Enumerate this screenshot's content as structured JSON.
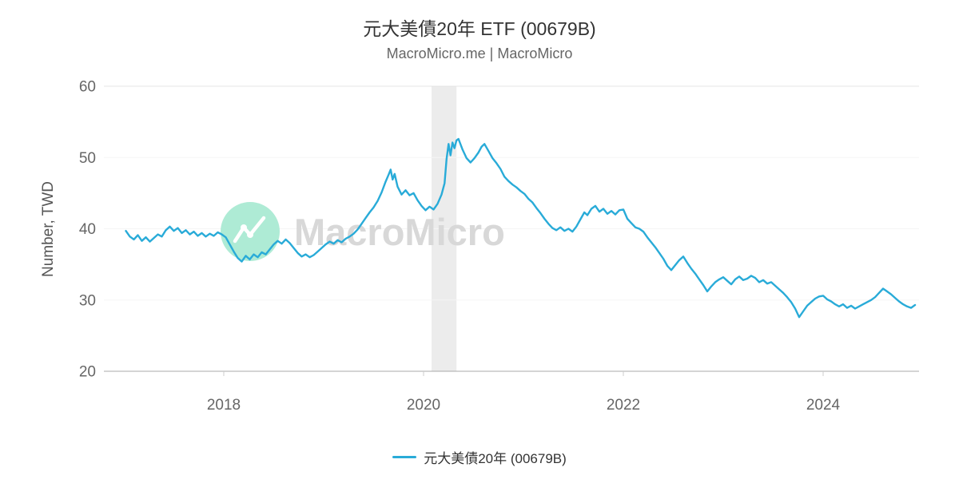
{
  "watermark": {
    "text": "MacroMicro",
    "text_color": "#d8d8d8",
    "logo_color": "#aeebd5"
  },
  "chart_data": {
    "type": "line",
    "title": "元大美債20年 ETF (00679B)",
    "subtitle": "MacroMicro.me | MacroMicro",
    "xlabel": "",
    "ylabel": "Number, TWD",
    "ylim": [
      20,
      60
    ],
    "xlim": [
      2016.8,
      2024.96
    ],
    "yticks": [
      20,
      30,
      40,
      50,
      60
    ],
    "xticks": [
      2018,
      2020,
      2022,
      2024
    ],
    "grid": "horizontal-faint",
    "legend_position": "bottom-center",
    "axis_color": "#a8a8a8",
    "grid_color": "#e4e4e4",
    "tick_label_color": "#666666",
    "recession_band": {
      "x0": 2020.08,
      "x1": 2020.33,
      "color": "#ececec"
    },
    "series": [
      {
        "name": "元大美債20年 (00679B)",
        "color": "#29abd8",
        "points": [
          [
            2017.02,
            39.7
          ],
          [
            2017.06,
            38.9
          ],
          [
            2017.1,
            38.5
          ],
          [
            2017.14,
            39.1
          ],
          [
            2017.18,
            38.3
          ],
          [
            2017.22,
            38.8
          ],
          [
            2017.26,
            38.2
          ],
          [
            2017.3,
            38.7
          ],
          [
            2017.34,
            39.2
          ],
          [
            2017.38,
            38.9
          ],
          [
            2017.42,
            39.8
          ],
          [
            2017.46,
            40.3
          ],
          [
            2017.5,
            39.7
          ],
          [
            2017.54,
            40.1
          ],
          [
            2017.58,
            39.4
          ],
          [
            2017.62,
            39.8
          ],
          [
            2017.66,
            39.2
          ],
          [
            2017.7,
            39.6
          ],
          [
            2017.74,
            39.0
          ],
          [
            2017.78,
            39.4
          ],
          [
            2017.82,
            38.9
          ],
          [
            2017.86,
            39.3
          ],
          [
            2017.9,
            39.0
          ],
          [
            2017.94,
            39.5
          ],
          [
            2017.98,
            39.2
          ],
          [
            2018.02,
            38.8
          ],
          [
            2018.06,
            37.8
          ],
          [
            2018.1,
            36.8
          ],
          [
            2018.14,
            35.9
          ],
          [
            2018.18,
            35.4
          ],
          [
            2018.22,
            36.2
          ],
          [
            2018.26,
            35.7
          ],
          [
            2018.3,
            36.4
          ],
          [
            2018.34,
            36.0
          ],
          [
            2018.38,
            36.7
          ],
          [
            2018.42,
            36.4
          ],
          [
            2018.46,
            37.1
          ],
          [
            2018.5,
            37.8
          ],
          [
            2018.54,
            38.3
          ],
          [
            2018.58,
            37.9
          ],
          [
            2018.62,
            38.5
          ],
          [
            2018.66,
            38.0
          ],
          [
            2018.7,
            37.3
          ],
          [
            2018.74,
            36.6
          ],
          [
            2018.78,
            36.1
          ],
          [
            2018.82,
            36.4
          ],
          [
            2018.86,
            36.0
          ],
          [
            2018.9,
            36.3
          ],
          [
            2018.94,
            36.8
          ],
          [
            2018.98,
            37.3
          ],
          [
            2019.02,
            37.8
          ],
          [
            2019.06,
            38.2
          ],
          [
            2019.1,
            37.9
          ],
          [
            2019.14,
            38.4
          ],
          [
            2019.18,
            38.1
          ],
          [
            2019.22,
            38.6
          ],
          [
            2019.26,
            38.9
          ],
          [
            2019.3,
            39.3
          ],
          [
            2019.34,
            39.9
          ],
          [
            2019.38,
            40.7
          ],
          [
            2019.42,
            41.5
          ],
          [
            2019.46,
            42.3
          ],
          [
            2019.5,
            43.0
          ],
          [
            2019.54,
            43.9
          ],
          [
            2019.58,
            45.1
          ],
          [
            2019.62,
            46.6
          ],
          [
            2019.65,
            47.6
          ],
          [
            2019.67,
            48.3
          ],
          [
            2019.69,
            46.9
          ],
          [
            2019.71,
            47.7
          ],
          [
            2019.74,
            45.9
          ],
          [
            2019.78,
            44.8
          ],
          [
            2019.82,
            45.4
          ],
          [
            2019.86,
            44.7
          ],
          [
            2019.9,
            45.0
          ],
          [
            2019.94,
            44.0
          ],
          [
            2019.98,
            43.2
          ],
          [
            2020.02,
            42.6
          ],
          [
            2020.06,
            43.1
          ],
          [
            2020.1,
            42.7
          ],
          [
            2020.14,
            43.5
          ],
          [
            2020.18,
            44.8
          ],
          [
            2020.21,
            46.4
          ],
          [
            2020.23,
            49.8
          ],
          [
            2020.25,
            51.9
          ],
          [
            2020.27,
            50.3
          ],
          [
            2020.29,
            52.1
          ],
          [
            2020.31,
            51.3
          ],
          [
            2020.33,
            52.4
          ],
          [
            2020.35,
            52.6
          ],
          [
            2020.39,
            51.1
          ],
          [
            2020.43,
            49.9
          ],
          [
            2020.47,
            49.3
          ],
          [
            2020.51,
            49.9
          ],
          [
            2020.55,
            50.7
          ],
          [
            2020.58,
            51.5
          ],
          [
            2020.61,
            51.9
          ],
          [
            2020.65,
            50.9
          ],
          [
            2020.69,
            49.9
          ],
          [
            2020.73,
            49.2
          ],
          [
            2020.77,
            48.4
          ],
          [
            2020.81,
            47.3
          ],
          [
            2020.85,
            46.7
          ],
          [
            2020.89,
            46.2
          ],
          [
            2020.93,
            45.8
          ],
          [
            2020.97,
            45.3
          ],
          [
            2021.01,
            44.9
          ],
          [
            2021.05,
            44.2
          ],
          [
            2021.09,
            43.7
          ],
          [
            2021.13,
            42.9
          ],
          [
            2021.17,
            42.2
          ],
          [
            2021.21,
            41.4
          ],
          [
            2021.25,
            40.7
          ],
          [
            2021.29,
            40.1
          ],
          [
            2021.33,
            39.8
          ],
          [
            2021.37,
            40.2
          ],
          [
            2021.41,
            39.7
          ],
          [
            2021.45,
            40.0
          ],
          [
            2021.49,
            39.6
          ],
          [
            2021.53,
            40.3
          ],
          [
            2021.57,
            41.3
          ],
          [
            2021.61,
            42.3
          ],
          [
            2021.64,
            41.9
          ],
          [
            2021.68,
            42.8
          ],
          [
            2021.72,
            43.2
          ],
          [
            2021.76,
            42.4
          ],
          [
            2021.8,
            42.8
          ],
          [
            2021.84,
            42.1
          ],
          [
            2021.88,
            42.5
          ],
          [
            2021.92,
            42.0
          ],
          [
            2021.96,
            42.6
          ],
          [
            2022.0,
            42.7
          ],
          [
            2022.04,
            41.4
          ],
          [
            2022.08,
            40.8
          ],
          [
            2022.12,
            40.2
          ],
          [
            2022.16,
            40.0
          ],
          [
            2022.2,
            39.6
          ],
          [
            2022.24,
            38.8
          ],
          [
            2022.28,
            38.1
          ],
          [
            2022.32,
            37.4
          ],
          [
            2022.36,
            36.6
          ],
          [
            2022.4,
            35.8
          ],
          [
            2022.44,
            34.8
          ],
          [
            2022.48,
            34.2
          ],
          [
            2022.52,
            34.9
          ],
          [
            2022.56,
            35.6
          ],
          [
            2022.6,
            36.1
          ],
          [
            2022.64,
            35.2
          ],
          [
            2022.68,
            34.4
          ],
          [
            2022.72,
            33.7
          ],
          [
            2022.76,
            32.9
          ],
          [
            2022.8,
            32.1
          ],
          [
            2022.84,
            31.2
          ],
          [
            2022.88,
            31.9
          ],
          [
            2022.92,
            32.5
          ],
          [
            2022.96,
            32.9
          ],
          [
            2023.0,
            33.2
          ],
          [
            2023.04,
            32.7
          ],
          [
            2023.08,
            32.2
          ],
          [
            2023.12,
            32.9
          ],
          [
            2023.16,
            33.3
          ],
          [
            2023.2,
            32.8
          ],
          [
            2023.24,
            33.0
          ],
          [
            2023.28,
            33.4
          ],
          [
            2023.32,
            33.1
          ],
          [
            2023.36,
            32.5
          ],
          [
            2023.4,
            32.8
          ],
          [
            2023.44,
            32.3
          ],
          [
            2023.48,
            32.5
          ],
          [
            2023.52,
            32.0
          ],
          [
            2023.56,
            31.5
          ],
          [
            2023.6,
            31.0
          ],
          [
            2023.64,
            30.4
          ],
          [
            2023.68,
            29.7
          ],
          [
            2023.72,
            28.8
          ],
          [
            2023.76,
            27.6
          ],
          [
            2023.8,
            28.4
          ],
          [
            2023.84,
            29.2
          ],
          [
            2023.88,
            29.7
          ],
          [
            2023.92,
            30.2
          ],
          [
            2023.96,
            30.5
          ],
          [
            2024.0,
            30.6
          ],
          [
            2024.04,
            30.1
          ],
          [
            2024.08,
            29.8
          ],
          [
            2024.12,
            29.4
          ],
          [
            2024.16,
            29.1
          ],
          [
            2024.2,
            29.4
          ],
          [
            2024.24,
            28.9
          ],
          [
            2024.28,
            29.2
          ],
          [
            2024.32,
            28.8
          ],
          [
            2024.36,
            29.1
          ],
          [
            2024.4,
            29.4
          ],
          [
            2024.44,
            29.7
          ],
          [
            2024.48,
            30.0
          ],
          [
            2024.52,
            30.4
          ],
          [
            2024.56,
            31.0
          ],
          [
            2024.6,
            31.6
          ],
          [
            2024.64,
            31.2
          ],
          [
            2024.68,
            30.8
          ],
          [
            2024.72,
            30.3
          ],
          [
            2024.76,
            29.8
          ],
          [
            2024.8,
            29.4
          ],
          [
            2024.84,
            29.1
          ],
          [
            2024.88,
            28.9
          ],
          [
            2024.92,
            29.3
          ]
        ]
      }
    ]
  }
}
